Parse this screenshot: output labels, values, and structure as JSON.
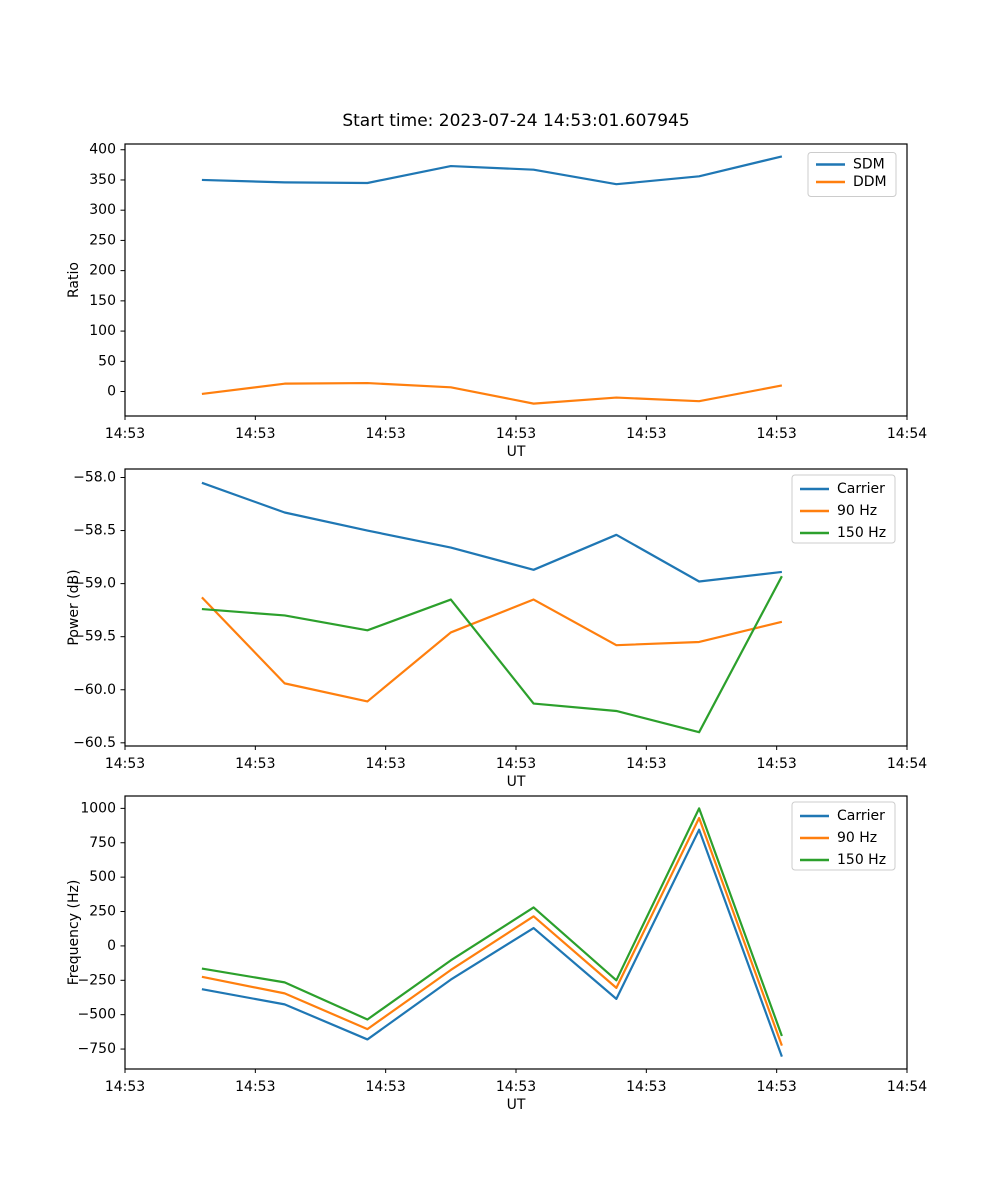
{
  "figure": {
    "title": "Start time: 2023-07-24 14:53:01.607945"
  },
  "colors": {
    "blue": "#1f77b4",
    "orange": "#ff7f0e",
    "green": "#2ca02c",
    "axis": "#000000",
    "legend_border": "#cccccc"
  },
  "chart_data": [
    {
      "type": "line",
      "title": "Start time: 2023-07-24 14:53:01.607945",
      "xlabel": "UT",
      "ylabel": "Ratio",
      "grid": false,
      "legend_position": "upper right",
      "xlim_seconds": [
        0,
        60
      ],
      "xticks_seconds": [
        0,
        10,
        20,
        30,
        40,
        50,
        60
      ],
      "xtick_labels": [
        "14:53",
        "14:53",
        "14:53",
        "14:53",
        "14:53",
        "14:53",
        "14:54"
      ],
      "x_seconds": [
        5.9,
        12.25,
        18.6,
        25.0,
        31.35,
        37.7,
        44.05,
        50.4
      ],
      "ylim": [
        -40.5,
        409.5
      ],
      "yticks": [
        0,
        50,
        100,
        150,
        200,
        250,
        300,
        350,
        400
      ],
      "ytick_labels": [
        "0",
        "50",
        "100",
        "150",
        "200",
        "250",
        "300",
        "350",
        "400"
      ],
      "series": [
        {
          "name": "SDM",
          "color": "#1f77b4",
          "values": [
            350,
            346,
            345,
            373,
            367,
            343,
            356,
            389
          ]
        },
        {
          "name": "DDM",
          "color": "#ff7f0e",
          "values": [
            -4,
            13,
            14,
            7,
            -20,
            -10,
            -16,
            10
          ]
        }
      ]
    },
    {
      "type": "line",
      "title": "",
      "xlabel": "UT",
      "ylabel": "Power (dB)",
      "grid": false,
      "legend_position": "upper right",
      "xlim_seconds": [
        0,
        60
      ],
      "xticks_seconds": [
        0,
        10,
        20,
        30,
        40,
        50,
        60
      ],
      "xtick_labels": [
        "14:53",
        "14:53",
        "14:53",
        "14:53",
        "14:53",
        "14:53",
        "14:54"
      ],
      "x_seconds": [
        5.9,
        12.25,
        18.6,
        25.0,
        31.35,
        37.7,
        44.05,
        50.4
      ],
      "ylim": [
        -60.53,
        -57.92
      ],
      "yticks": [
        -58.0,
        -58.5,
        -59.0,
        -59.5,
        -60.0,
        -60.5
      ],
      "ytick_labels": [
        "−58.0",
        "−58.5",
        "−59.0",
        "−59.5",
        "−60.0",
        "−60.5"
      ],
      "series": [
        {
          "name": "Carrier",
          "color": "#1f77b4",
          "values": [
            -58.05,
            -58.33,
            -58.5,
            -58.66,
            -58.87,
            -58.54,
            -58.98,
            -58.89
          ]
        },
        {
          "name": "90 Hz",
          "color": "#ff7f0e",
          "values": [
            -59.13,
            -59.94,
            -60.11,
            -59.46,
            -59.15,
            -59.58,
            -59.55,
            -59.36
          ]
        },
        {
          "name": "150 Hz",
          "color": "#2ca02c",
          "values": [
            -59.24,
            -59.3,
            -59.44,
            -59.15,
            -60.13,
            -60.2,
            -60.4,
            -58.93
          ]
        }
      ]
    },
    {
      "type": "line",
      "title": "",
      "xlabel": "UT",
      "ylabel": "Frequency (Hz)",
      "grid": false,
      "legend_position": "upper right",
      "xlim_seconds": [
        0,
        60
      ],
      "xticks_seconds": [
        0,
        10,
        20,
        30,
        40,
        50,
        60
      ],
      "xtick_labels": [
        "14:53",
        "14:53",
        "14:53",
        "14:53",
        "14:53",
        "14:53",
        "14:54"
      ],
      "x_seconds": [
        5.9,
        12.25,
        18.6,
        25.0,
        31.35,
        37.7,
        44.05,
        50.4
      ],
      "ylim": [
        -895,
        1090
      ],
      "yticks": [
        1000,
        750,
        500,
        250,
        0,
        -250,
        -500,
        -750
      ],
      "ytick_labels": [
        "1000",
        "750",
        "500",
        "250",
        "0",
        "−250",
        "−500",
        "−750"
      ],
      "series": [
        {
          "name": "Carrier",
          "color": "#1f77b4",
          "values": [
            -315,
            -425,
            -680,
            -245,
            130,
            -385,
            845,
            -805
          ]
        },
        {
          "name": "90 Hz",
          "color": "#ff7f0e",
          "values": [
            -225,
            -345,
            -605,
            -175,
            215,
            -305,
            930,
            -725
          ]
        },
        {
          "name": "150 Hz",
          "color": "#2ca02c",
          "values": [
            -165,
            -265,
            -535,
            -105,
            280,
            -250,
            1000,
            -655
          ]
        }
      ]
    }
  ]
}
